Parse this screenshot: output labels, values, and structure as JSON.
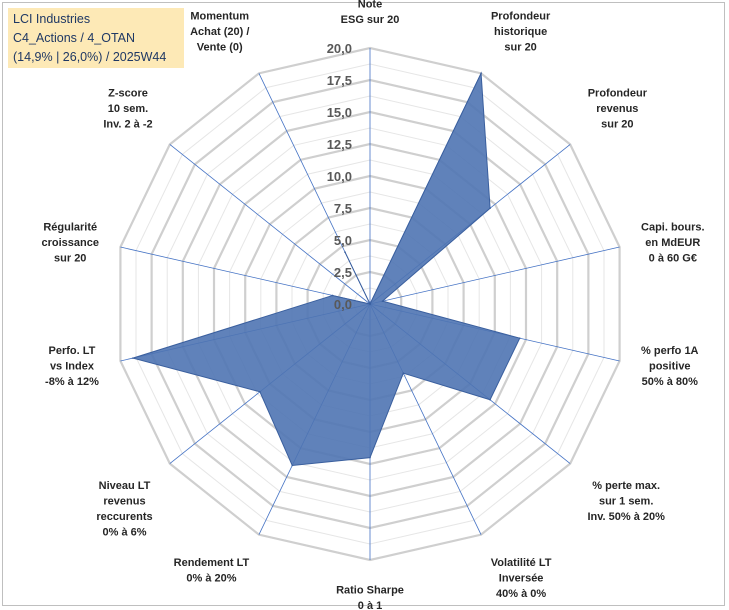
{
  "title_box": {
    "line1": "LCI Industries",
    "line2": "C4_Actions / 4_OTAN",
    "line3": "(14,9% | 26,0%) / 2025W44"
  },
  "chart_data": {
    "type": "radar",
    "title": "LCI Industries",
    "subtitle": "C4_Actions / 4_OTAN (14,9% | 26,0%) / 2025W44",
    "rmin": 0,
    "rmax": 20,
    "tick_labels": [
      "0,0",
      "2,5",
      "5,0",
      "7,5",
      "10,0",
      "12,5",
      "15,0",
      "17,5",
      "20,0"
    ],
    "axes": [
      [
        "Note",
        "ESG sur 20"
      ],
      [
        "Profondeur",
        "historique",
        "sur 20"
      ],
      [
        "Profondeur",
        "revenus",
        "sur 20"
      ],
      [
        "Capi. bours.",
        "en MdEUR",
        "0 à 60 G€"
      ],
      [
        "% perfo 1A",
        "positive",
        "50% à 80%"
      ],
      [
        "% perte max.",
        "sur 1 sem.",
        "Inv. 50% à 20%"
      ],
      [
        "Volatilité LT",
        "Inversée",
        "40% à 0%"
      ],
      [
        "Ratio Sharpe",
        "0 à 1"
      ],
      [
        "Rendement LT",
        "0% à 20%"
      ],
      [
        "Niveau LT",
        "revenus",
        "reccurents",
        "0% à 6%"
      ],
      [
        "Perfo. LT",
        "vs Index",
        "-8% à 12%"
      ],
      [
        "Régularité",
        "croissance",
        "sur 20"
      ],
      [
        "Z-score",
        "10 sem.",
        "Inv. 2 à -2"
      ],
      [
        "Momentum",
        "Achat (20) /",
        "Vente (0)"
      ]
    ],
    "series": [
      {
        "name": "LCI Industries",
        "values": [
          0,
          20,
          12,
          1,
          12,
          12,
          6,
          12,
          14,
          11,
          19,
          3,
          0,
          4.5
        ],
        "color": "#4f74b2"
      }
    ],
    "grid": true,
    "grid_color": "#d9d9d9",
    "spoke_color": "#4472c4"
  }
}
